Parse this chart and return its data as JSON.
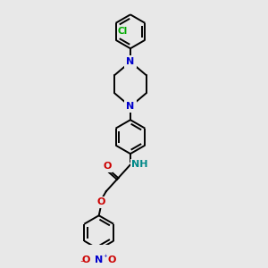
{
  "bg_color": "#e8e8e8",
  "bond_color": "#000000",
  "N_color": "#0000cc",
  "O_color": "#cc0000",
  "Cl_color": "#00aa00",
  "NH_color": "#008888",
  "line_width": 1.4,
  "figsize": [
    3.0,
    3.0
  ],
  "dpi": 100,
  "xlim": [
    0,
    10
  ],
  "ylim": [
    0,
    10
  ]
}
